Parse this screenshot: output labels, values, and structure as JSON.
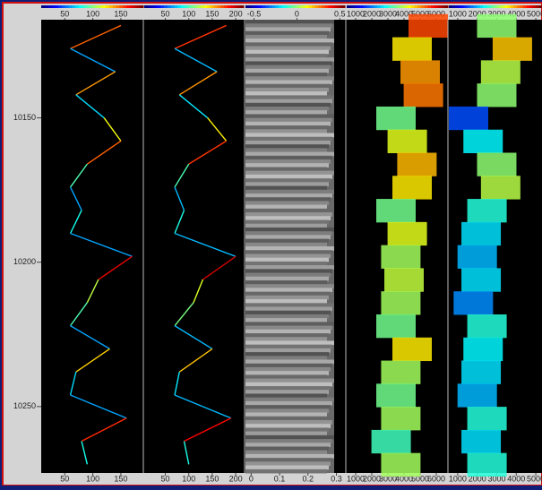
{
  "depth_axis": {
    "ylim": [
      10116,
      10273
    ],
    "yticks": [
      10150,
      10200,
      10250
    ],
    "depths": [
      10118,
      10126,
      10134,
      10142,
      10150,
      10158,
      10166,
      10174,
      10182,
      10190,
      10198,
      10206,
      10214,
      10222,
      10230,
      10238,
      10246,
      10254,
      10262,
      10270
    ]
  },
  "chart_data": [
    {
      "type": "line",
      "xlim": [
        8,
        190
      ],
      "xticks": [
        50,
        100,
        150
      ],
      "values": [
        150,
        60,
        140,
        70,
        120,
        150,
        90,
        60,
        80,
        60,
        170,
        110,
        90,
        60,
        130,
        70,
        60,
        160,
        80,
        90
      ]
    },
    {
      "type": "line",
      "xlim": [
        5,
        217
      ],
      "xticks": [
        50,
        100,
        150,
        200
      ],
      "values": [
        180,
        70,
        160,
        80,
        140,
        180,
        100,
        70,
        90,
        70,
        200,
        130,
        110,
        70,
        150,
        80,
        70,
        190,
        90,
        100
      ]
    },
    {
      "type": "image",
      "xlim": [
        -0.6,
        0.56
      ],
      "xticks": [
        -0.5,
        0,
        0.5
      ],
      "x2lim": [
        -0.02,
        0.33
      ],
      "x2ticks": [
        0,
        0.1,
        0.2,
        0.3
      ]
    },
    {
      "type": "cloud",
      "xlim": [
        444,
        6722
      ],
      "xticks": [
        1000,
        2000,
        3000,
        4000,
        5000,
        6000
      ],
      "values": [
        5500,
        4500,
        5000,
        5200,
        3500,
        4200,
        4800,
        4500,
        3500,
        4200,
        3800,
        4000,
        3800,
        3500,
        4500,
        3800,
        3500,
        3800,
        3200,
        3800
      ]
    },
    {
      "type": "cloud",
      "xlim": [
        545,
        5318
      ],
      "xticks": [
        1000,
        2000,
        3000,
        4000,
        5000
      ],
      "values": [
        3000,
        3800,
        3200,
        3000,
        1500,
        2300,
        3000,
        3200,
        2500,
        2200,
        2000,
        2200,
        1800,
        2500,
        2300,
        2200,
        2000,
        2500,
        2200,
        2500
      ]
    }
  ]
}
